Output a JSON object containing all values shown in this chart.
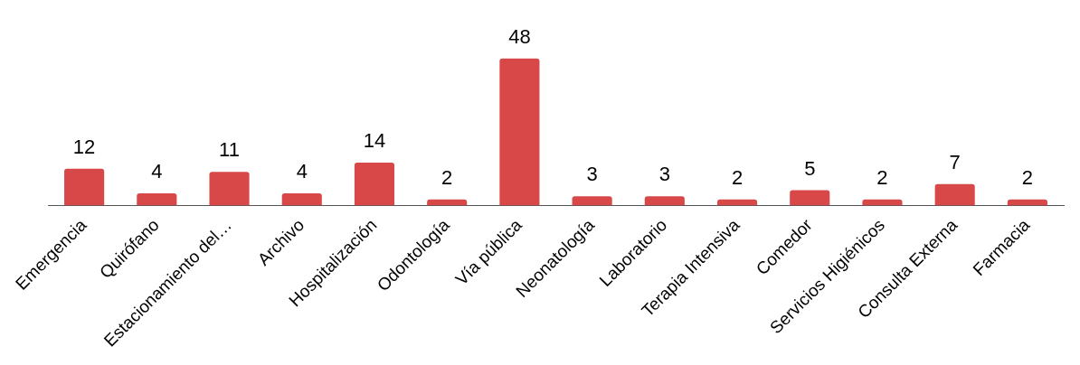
{
  "chart_data": {
    "type": "bar",
    "categories": [
      "Emergencia",
      "Quirófano",
      "Estacionamiento del…",
      "Archivo",
      "Hospitalización",
      "Odontología",
      "Vía pública",
      "Neonatología",
      "Laboratorio",
      "Terapia Intensiva",
      "Comedor",
      "Servicios Higiénicos",
      "Consulta Externa",
      "Farmacia"
    ],
    "values": [
      12,
      4,
      11,
      4,
      14,
      2,
      48,
      3,
      3,
      2,
      5,
      2,
      7,
      2
    ],
    "color": "#d94848",
    "data_labels": true,
    "grid": false,
    "legend": false
  }
}
